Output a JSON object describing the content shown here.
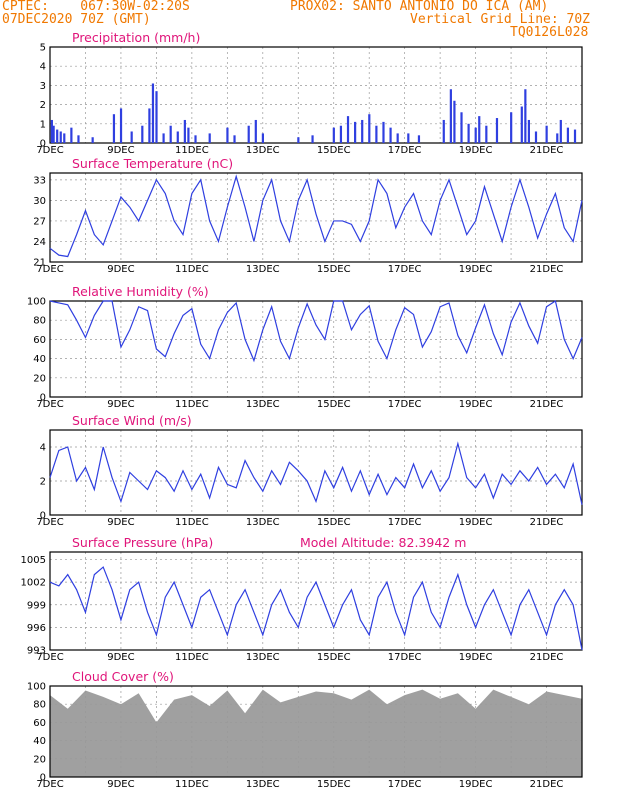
{
  "header": {
    "line1_left": "CPTEC:    067:30W-02:20S",
    "line1_right": "PROX02: SANTO ANTONIO DO ICA (AM)",
    "line2_left": "07DEC2020 70Z (GMT)",
    "line2_right": "Vertical Grid Line: 70Z",
    "line3_right": "TQ0126L028"
  },
  "colors": {
    "header": "#f07800",
    "title": "#e0157a",
    "series": "#2f3fe0",
    "cloud": "#a0a0a0"
  },
  "x_ticks": [
    "7DEC",
    "9DEC",
    "11DEC",
    "13DEC",
    "15DEC",
    "17DEC",
    "19DEC",
    "21DEC"
  ],
  "chart_data": [
    {
      "type": "bar",
      "title": "Precipitation (mm/h)",
      "ylim": [
        0,
        5
      ],
      "yticks": [
        0,
        1,
        2,
        3,
        4,
        5
      ],
      "days_start": 0,
      "days_end": 15,
      "bars": [
        [
          0.05,
          1.2
        ],
        [
          0.1,
          0.9
        ],
        [
          0.2,
          0.7
        ],
        [
          0.3,
          0.6
        ],
        [
          0.4,
          0.5
        ],
        [
          0.6,
          0.8
        ],
        [
          0.8,
          0.4
        ],
        [
          1.2,
          0.3
        ],
        [
          1.8,
          1.5
        ],
        [
          2.0,
          1.8
        ],
        [
          2.3,
          0.6
        ],
        [
          2.6,
          0.9
        ],
        [
          2.8,
          1.8
        ],
        [
          2.9,
          3.1
        ],
        [
          3.0,
          2.7
        ],
        [
          3.2,
          0.5
        ],
        [
          3.4,
          0.9
        ],
        [
          3.6,
          0.6
        ],
        [
          3.8,
          1.2
        ],
        [
          3.9,
          0.8
        ],
        [
          4.1,
          0.4
        ],
        [
          4.5,
          0.5
        ],
        [
          5.0,
          0.8
        ],
        [
          5.2,
          0.4
        ],
        [
          5.6,
          0.9
        ],
        [
          5.8,
          1.2
        ],
        [
          6.0,
          0.5
        ],
        [
          7.0,
          0.3
        ],
        [
          7.4,
          0.4
        ],
        [
          8.0,
          0.8
        ],
        [
          8.2,
          0.9
        ],
        [
          8.4,
          1.4
        ],
        [
          8.6,
          1.1
        ],
        [
          8.8,
          1.2
        ],
        [
          9.0,
          1.5
        ],
        [
          9.2,
          0.9
        ],
        [
          9.4,
          1.1
        ],
        [
          9.6,
          0.8
        ],
        [
          9.8,
          0.5
        ],
        [
          10.1,
          0.5
        ],
        [
          10.4,
          0.4
        ],
        [
          11.1,
          1.2
        ],
        [
          11.3,
          2.8
        ],
        [
          11.4,
          2.2
        ],
        [
          11.6,
          1.6
        ],
        [
          11.8,
          1.0
        ],
        [
          12.0,
          0.8
        ],
        [
          12.1,
          1.4
        ],
        [
          12.3,
          0.9
        ],
        [
          12.6,
          1.3
        ],
        [
          13.0,
          1.6
        ],
        [
          13.3,
          1.9
        ],
        [
          13.4,
          2.8
        ],
        [
          13.5,
          1.2
        ],
        [
          13.7,
          0.6
        ],
        [
          14.0,
          0.9
        ],
        [
          14.3,
          0.5
        ],
        [
          14.4,
          1.2
        ],
        [
          14.6,
          0.8
        ],
        [
          14.8,
          0.7
        ]
      ]
    },
    {
      "type": "line",
      "title": "Surface Temperature (nC)",
      "ylim": [
        21,
        34
      ],
      "yticks": [
        21,
        24,
        27,
        30,
        33
      ],
      "days_start": 0,
      "days_end": 15,
      "x": [
        0,
        0.25,
        0.5,
        0.75,
        1.0,
        1.25,
        1.5,
        1.75,
        2.0,
        2.25,
        2.5,
        2.75,
        3.0,
        3.25,
        3.5,
        3.75,
        4.0,
        4.25,
        4.5,
        4.75,
        5.0,
        5.25,
        5.5,
        5.75,
        6.0,
        6.25,
        6.5,
        6.75,
        7.0,
        7.25,
        7.5,
        7.75,
        8.0,
        8.25,
        8.5,
        8.75,
        9.0,
        9.25,
        9.5,
        9.75,
        10.0,
        10.25,
        10.5,
        10.75,
        11.0,
        11.25,
        11.5,
        11.75,
        12.0,
        12.25,
        12.5,
        12.75,
        13.0,
        13.25,
        13.5,
        13.75,
        14.0,
        14.25,
        14.5,
        14.75,
        15.0
      ],
      "y": [
        23,
        22,
        21.8,
        25,
        28.5,
        25,
        23.5,
        27,
        30.5,
        29,
        27,
        30,
        33,
        31,
        27,
        25,
        31,
        33,
        27,
        24,
        29,
        33.5,
        29,
        24,
        30,
        33,
        27,
        24,
        30,
        33,
        28,
        24,
        27,
        27,
        26.5,
        24,
        27,
        33,
        31,
        26,
        29,
        31,
        27,
        25,
        30,
        33,
        29,
        25,
        27,
        32,
        28,
        24,
        29,
        33,
        29,
        24.5,
        28,
        31,
        26,
        24,
        30
      ]
    },
    {
      "type": "line",
      "title": "Relative Humidity (%)",
      "ylim": [
        0,
        100
      ],
      "yticks": [
        0,
        20,
        40,
        60,
        80,
        100
      ],
      "days_start": 0,
      "days_end": 15,
      "x": [
        0,
        0.25,
        0.5,
        0.75,
        1.0,
        1.25,
        1.5,
        1.75,
        2.0,
        2.25,
        2.5,
        2.75,
        3.0,
        3.25,
        3.5,
        3.75,
        4.0,
        4.25,
        4.5,
        4.75,
        5.0,
        5.25,
        5.5,
        5.75,
        6.0,
        6.25,
        6.5,
        6.75,
        7.0,
        7.25,
        7.5,
        7.75,
        8.0,
        8.25,
        8.5,
        8.75,
        9.0,
        9.25,
        9.5,
        9.75,
        10.0,
        10.25,
        10.5,
        10.75,
        11.0,
        11.25,
        11.5,
        11.75,
        12.0,
        12.25,
        12.5,
        12.75,
        13.0,
        13.25,
        13.5,
        13.75,
        14.0,
        14.25,
        14.5,
        14.75,
        15.0
      ],
      "y": [
        100,
        98,
        96,
        80,
        62,
        85,
        100,
        100,
        52,
        70,
        94,
        90,
        50,
        42,
        66,
        85,
        92,
        55,
        40,
        70,
        88,
        98,
        60,
        38,
        70,
        94,
        58,
        40,
        72,
        97,
        75,
        60,
        100,
        100,
        70,
        86,
        95,
        58,
        40,
        70,
        93,
        86,
        52,
        68,
        94,
        98,
        64,
        46,
        72,
        96,
        66,
        44,
        78,
        98,
        74,
        56,
        94,
        100,
        60,
        40,
        62
      ]
    },
    {
      "type": "line",
      "title": "Surface Wind (m/s)",
      "ylim": [
        0,
        5
      ],
      "yticks": [
        0,
        2,
        4
      ],
      "days_start": 0,
      "days_end": 15,
      "x": [
        0,
        0.25,
        0.5,
        0.75,
        1.0,
        1.25,
        1.5,
        1.75,
        2.0,
        2.25,
        2.5,
        2.75,
        3.0,
        3.25,
        3.5,
        3.75,
        4.0,
        4.25,
        4.5,
        4.75,
        5.0,
        5.25,
        5.5,
        5.75,
        6.0,
        6.25,
        6.5,
        6.75,
        7.0,
        7.25,
        7.5,
        7.75,
        8.0,
        8.25,
        8.5,
        8.75,
        9.0,
        9.25,
        9.5,
        9.75,
        10.0,
        10.25,
        10.5,
        10.75,
        11.0,
        11.25,
        11.5,
        11.75,
        12.0,
        12.25,
        12.5,
        12.75,
        13.0,
        13.25,
        13.5,
        13.75,
        14.0,
        14.25,
        14.5,
        14.75,
        15.0
      ],
      "y": [
        2.2,
        3.8,
        4.0,
        2.0,
        2.8,
        1.5,
        4.0,
        2.2,
        0.8,
        2.5,
        2.0,
        1.5,
        2.6,
        2.2,
        1.4,
        2.6,
        1.5,
        2.4,
        1.0,
        2.8,
        1.8,
        1.6,
        3.2,
        2.2,
        1.4,
        2.6,
        1.8,
        3.1,
        2.6,
        2.0,
        0.8,
        2.6,
        1.6,
        2.8,
        1.4,
        2.6,
        1.2,
        2.4,
        1.2,
        2.2,
        1.6,
        3.0,
        1.6,
        2.6,
        1.4,
        2.2,
        4.2,
        2.2,
        1.6,
        2.4,
        1.0,
        2.4,
        1.8,
        2.6,
        2.0,
        2.8,
        1.8,
        2.4,
        1.6,
        3.0,
        0.6
      ]
    },
    {
      "type": "line",
      "title": "Surface Pressure (hPa)",
      "annotation": "Model Altitude: 82.3942  m",
      "ylim": [
        993,
        1006
      ],
      "yticks": [
        993,
        996,
        999,
        1002,
        1005
      ],
      "days_start": 0,
      "days_end": 15,
      "x": [
        0,
        0.25,
        0.5,
        0.75,
        1.0,
        1.25,
        1.5,
        1.75,
        2.0,
        2.25,
        2.5,
        2.75,
        3.0,
        3.25,
        3.5,
        3.75,
        4.0,
        4.25,
        4.5,
        4.75,
        5.0,
        5.25,
        5.5,
        5.75,
        6.0,
        6.25,
        6.5,
        6.75,
        7.0,
        7.25,
        7.5,
        7.75,
        8.0,
        8.25,
        8.5,
        8.75,
        9.0,
        9.25,
        9.5,
        9.75,
        10.0,
        10.25,
        10.5,
        10.75,
        11.0,
        11.25,
        11.5,
        11.75,
        12.0,
        12.25,
        12.5,
        12.75,
        13.0,
        13.25,
        13.5,
        13.75,
        14.0,
        14.25,
        14.5,
        14.75,
        15.0
      ],
      "y": [
        1002,
        1001.5,
        1003,
        1001,
        998,
        1003,
        1004,
        1001,
        997,
        1001,
        1002,
        998,
        995,
        1000,
        1002,
        999,
        996,
        1000,
        1001,
        998,
        995,
        999,
        1001,
        998,
        995,
        999,
        1001,
        998,
        996,
        1000,
        1002,
        999,
        996,
        999,
        1001,
        997,
        995,
        1000,
        1002,
        998,
        995,
        1000,
        1002,
        998,
        996,
        1000,
        1003,
        999,
        996,
        999,
        1001,
        998,
        995,
        999,
        1001,
        998,
        995,
        999,
        1001,
        999,
        993
      ]
    },
    {
      "type": "area",
      "title": "Cloud Cover (%)",
      "ylim": [
        0,
        100
      ],
      "yticks": [
        0,
        20,
        40,
        60,
        80,
        100
      ],
      "days_start": 0,
      "days_end": 15,
      "x": [
        0,
        0.5,
        1.0,
        1.5,
        2.0,
        2.5,
        3.0,
        3.5,
        4.0,
        4.5,
        5.0,
        5.5,
        6.0,
        6.5,
        7.0,
        7.5,
        8.0,
        8.5,
        9.0,
        9.5,
        10.0,
        10.5,
        11.0,
        11.5,
        12.0,
        12.5,
        13.0,
        13.5,
        14.0,
        14.5,
        15.0
      ],
      "y": [
        90,
        75,
        95,
        88,
        80,
        92,
        60,
        85,
        90,
        78,
        95,
        70,
        96,
        82,
        88,
        94,
        92,
        85,
        96,
        80,
        90,
        96,
        86,
        92,
        75,
        96,
        88,
        80,
        94,
        90,
        86
      ]
    }
  ]
}
